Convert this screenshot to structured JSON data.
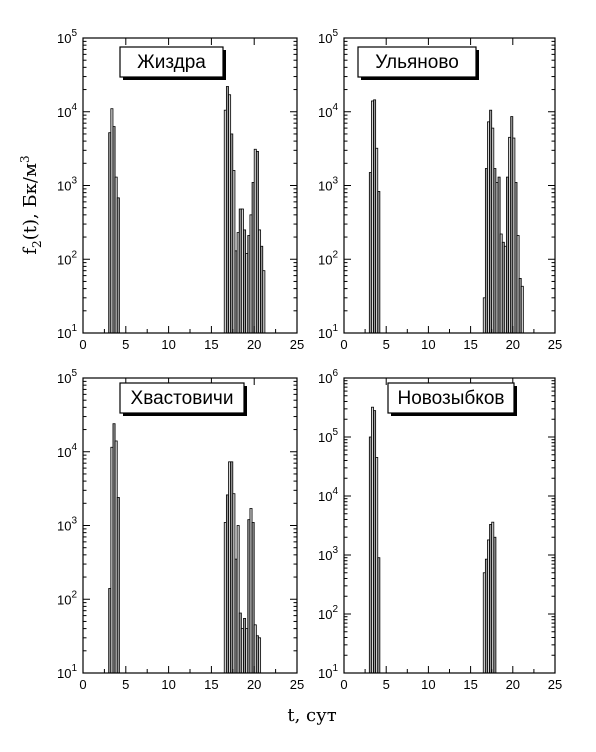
{
  "figure": {
    "ylabel": "f2(t),  Бк/м3",
    "xlabel": "t, сут"
  },
  "colors": {
    "bar_fill_dark": "#9a9a9a",
    "bar_fill_light": "#d6d6d6",
    "axis": "#000000"
  },
  "chart_data": [
    {
      "type": "bar",
      "title": "Жиздра",
      "scale": "log",
      "xlim": [
        0,
        25
      ],
      "ylim": [
        10,
        100000
      ],
      "xticks": [
        "0",
        "5",
        "10",
        "15",
        "20",
        "25"
      ],
      "yticks": [
        "10",
        "10",
        "10",
        "10",
        "10"
      ],
      "yexps": [
        "1",
        "2",
        "3",
        "4",
        "5"
      ],
      "x": [
        3.0,
        3.25,
        3.5,
        3.75,
        4.0,
        16.5,
        16.75,
        17.0,
        17.25,
        17.5,
        17.75,
        18.0,
        18.25,
        18.5,
        18.75,
        19.0,
        19.25,
        19.5,
        19.75,
        20.0,
        20.25,
        20.5,
        20.75,
        21.0
      ],
      "values": [
        5200,
        11000,
        6300,
        1300,
        680,
        10500,
        22000,
        17000,
        5000,
        1600,
        130,
        230,
        480,
        480,
        250,
        120,
        210,
        400,
        1100,
        3100,
        2900,
        250,
        150,
        70
      ]
    },
    {
      "type": "bar",
      "title": "Ульяново",
      "scale": "log",
      "xlim": [
        0,
        25
      ],
      "ylim": [
        10,
        100000
      ],
      "xticks": [
        "0",
        "5",
        "10",
        "15",
        "20",
        "25"
      ],
      "yticks": [
        "10",
        "10",
        "10",
        "10",
        "10"
      ],
      "yexps": [
        "1",
        "2",
        "3",
        "4",
        "5"
      ],
      "x": [
        3.0,
        3.25,
        3.5,
        3.75,
        4.0,
        16.5,
        16.75,
        17.0,
        17.25,
        17.5,
        17.75,
        18.0,
        18.25,
        18.5,
        18.75,
        19.0,
        19.25,
        19.5,
        19.75,
        20.0,
        20.25,
        20.5,
        20.75,
        21.0
      ],
      "values": [
        1500,
        14000,
        14500,
        3200,
        830,
        30,
        1700,
        7300,
        10500,
        6000,
        1700,
        1100,
        1300,
        220,
        170,
        150,
        1300,
        4500,
        8600,
        4400,
        1100,
        210,
        55,
        43
      ]
    },
    {
      "type": "bar",
      "title": "Хвастовичи",
      "scale": "log",
      "xlim": [
        0,
        25
      ],
      "ylim": [
        10,
        100000
      ],
      "xticks": [
        "0",
        "5",
        "10",
        "15",
        "20",
        "25"
      ],
      "yticks": [
        "10",
        "10",
        "10",
        "10",
        "10"
      ],
      "yexps": [
        "1",
        "2",
        "3",
        "4",
        "5"
      ],
      "x": [
        3.0,
        3.25,
        3.5,
        3.75,
        4.0,
        16.5,
        16.75,
        17.0,
        17.25,
        17.5,
        17.75,
        18.0,
        18.25,
        18.5,
        18.75,
        19.0,
        19.25,
        19.5,
        19.75,
        20.0,
        20.25,
        20.5
      ],
      "values": [
        140,
        11500,
        24000,
        14000,
        2400,
        1100,
        2600,
        7300,
        7300,
        2700,
        350,
        1000,
        65,
        40,
        55,
        40,
        1200,
        1700,
        1100,
        45,
        32,
        30
      ]
    },
    {
      "type": "bar",
      "title": "Новозыбков",
      "scale": "log",
      "xlim": [
        0,
        25
      ],
      "ylim": [
        10,
        1000000
      ],
      "xticks": [
        "0",
        "5",
        "10",
        "15",
        "20",
        "25"
      ],
      "yticks": [
        "10",
        "10",
        "10",
        "10",
        "10",
        "10"
      ],
      "yexps": [
        "1",
        "2",
        "3",
        "4",
        "5",
        "6"
      ],
      "x": [
        3.0,
        3.25,
        3.5,
        3.75,
        4.0,
        16.5,
        16.75,
        17.0,
        17.25,
        17.5,
        17.75
      ],
      "values": [
        100000,
        320000,
        280000,
        45000,
        900,
        500,
        850,
        1800,
        3300,
        3600,
        2000
      ]
    }
  ]
}
